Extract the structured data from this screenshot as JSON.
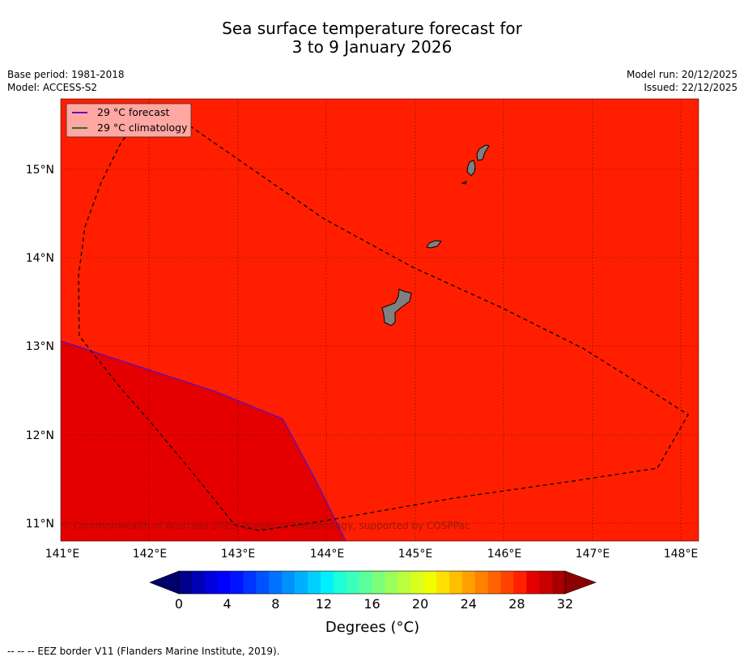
{
  "title_line1": "Sea surface temperature forecast for",
  "title_line2": "3 to 9 January 2026",
  "meta": {
    "base_period": "Base period: 1981-2018",
    "model": "Model: ACCESS-S2",
    "model_run": "Model run: 20/12/2025",
    "issued": "Issued: 22/12/2025"
  },
  "map": {
    "lon_ticks": [
      "141°E",
      "142°E",
      "143°E",
      "144°E",
      "145°E",
      "146°E",
      "147°E",
      "148°E"
    ],
    "lat_ticks": [
      "15°N",
      "14°N",
      "13°N",
      "12°N",
      "11°N"
    ],
    "copyright": "© Commonwealth of Australia 2025, Bureau of Meteorology, supported by COSPPac",
    "legend": {
      "forecast": "29 °C  forecast",
      "climatology": "29 °C  climatology"
    },
    "colors": {
      "background_zone": "#ff1f00",
      "warm_zone": "#e50000",
      "land": "#808080",
      "forecast_line": "#6a0dad",
      "climatology_line": "#1f7a1f",
      "legend_bg": "#ffa7a2"
    }
  },
  "colorbar": {
    "ticks": [
      "0",
      "4",
      "8",
      "12",
      "16",
      "20",
      "24",
      "28",
      "32"
    ],
    "label": "Degrees (°C)",
    "colors": [
      "#00008b",
      "#0000b4",
      "#0000db",
      "#0000ff",
      "#0014ff",
      "#0033ff",
      "#0052ff",
      "#0072ff",
      "#0091ff",
      "#00b0ff",
      "#00d0ff",
      "#00f0ff",
      "#1cffd9",
      "#3bffba",
      "#5aff9b",
      "#7bff7b",
      "#9aff5c",
      "#baff3d",
      "#d8ff1f",
      "#f0ff00",
      "#ffe000",
      "#ffc000",
      "#ffa000",
      "#ff8200",
      "#ff6200",
      "#ff4200",
      "#ff2000",
      "#e50000",
      "#c80000",
      "#a80000"
    ],
    "under_color": "#00006b",
    "over_color": "#8b0000"
  },
  "footer": "--  --  -- EEZ border V11 (Flanders Marine Institute, 2019)."
}
